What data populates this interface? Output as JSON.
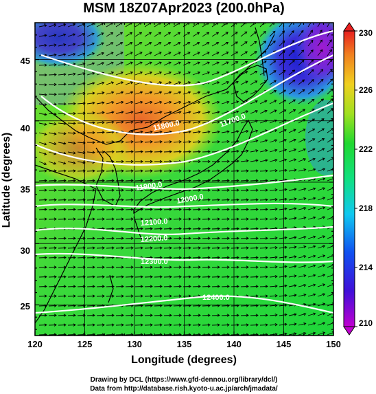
{
  "title": "MSM 18Z07Apr2023 (200.0hPa)",
  "x_axis": {
    "label": "Longitude (degrees)",
    "ticks": [
      "120",
      "125",
      "130",
      "135",
      "140",
      "145",
      "150"
    ]
  },
  "y_axis": {
    "label": "Latitude  (degrees)",
    "ticks": [
      "25",
      "30",
      "35",
      "40",
      "45"
    ]
  },
  "colorbar": {
    "ticks": [
      "210",
      "214",
      "218",
      "222",
      "226",
      "230"
    ],
    "range": [
      210,
      230
    ]
  },
  "contour_labels": [
    "11700.0",
    "11800.0",
    "11900.0",
    "12000.0",
    "12100.0",
    "12200.0",
    "12300.0",
    "12400.0"
  ],
  "credits": {
    "line1": "Drawing by DCL (https://www.gfd-dennou.org/library/dcl/)",
    "line2": "Data from http://database.rish.kyoto-u.ac.jp/arch/jmadata/"
  },
  "chart_data": {
    "type": "heatmap",
    "title": "MSM 18Z07Apr2023 (200.0hPa)",
    "xlabel": "Longitude (degrees)",
    "ylabel": "Latitude  (degrees)",
    "xlim": [
      120,
      150
    ],
    "ylim": [
      22.5,
      48
    ],
    "color_range": [
      210,
      230
    ],
    "overlays": [
      "wind vectors",
      "geopotential height contours",
      "coastlines",
      "lat/lon grid"
    ],
    "contour_levels": [
      11700,
      11800,
      11900,
      12000,
      12100,
      12200,
      12300,
      12400
    ]
  },
  "colors": {
    "warm": "#e8672a",
    "mid": "#22d33a",
    "cold": "#9a1fd0",
    "contour": "#ffffff"
  }
}
